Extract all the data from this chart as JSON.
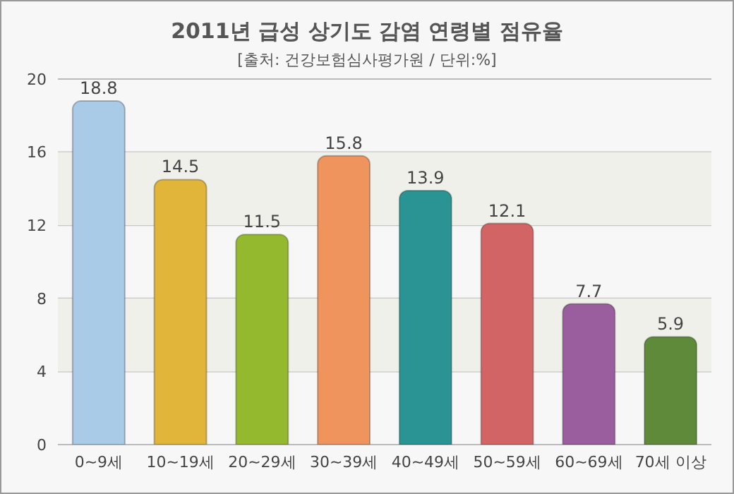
{
  "chart_data": {
    "type": "bar",
    "title": "2011년 급성 상기도 감염 연령별 점유율",
    "subtitle": "[출처: 건강보험심사평가원 / 단위:%]",
    "categories": [
      "0~9세",
      "10~19세",
      "20~29세",
      "30~39세",
      "40~49세",
      "50~59세",
      "60~69세",
      "70세 이상"
    ],
    "values": [
      18.8,
      14.5,
      11.5,
      15.8,
      13.9,
      12.1,
      7.7,
      5.9
    ],
    "colors": [
      "#a9cbe8",
      "#e0b53a",
      "#94b92e",
      "#f0945e",
      "#2a9494",
      "#d36466",
      "#9a5e9e",
      "#5f8a3a"
    ],
    "ylim": [
      0,
      20
    ],
    "yticks": [
      0,
      4,
      8,
      12,
      16,
      20
    ],
    "grid": "y",
    "data_labels": true,
    "bands": [
      {
        "axis": "y",
        "from": 4,
        "to": 8,
        "color": "#f0f0ea"
      },
      {
        "axis": "y",
        "from": 12,
        "to": 16,
        "color": "#f0f0ea"
      }
    ]
  }
}
